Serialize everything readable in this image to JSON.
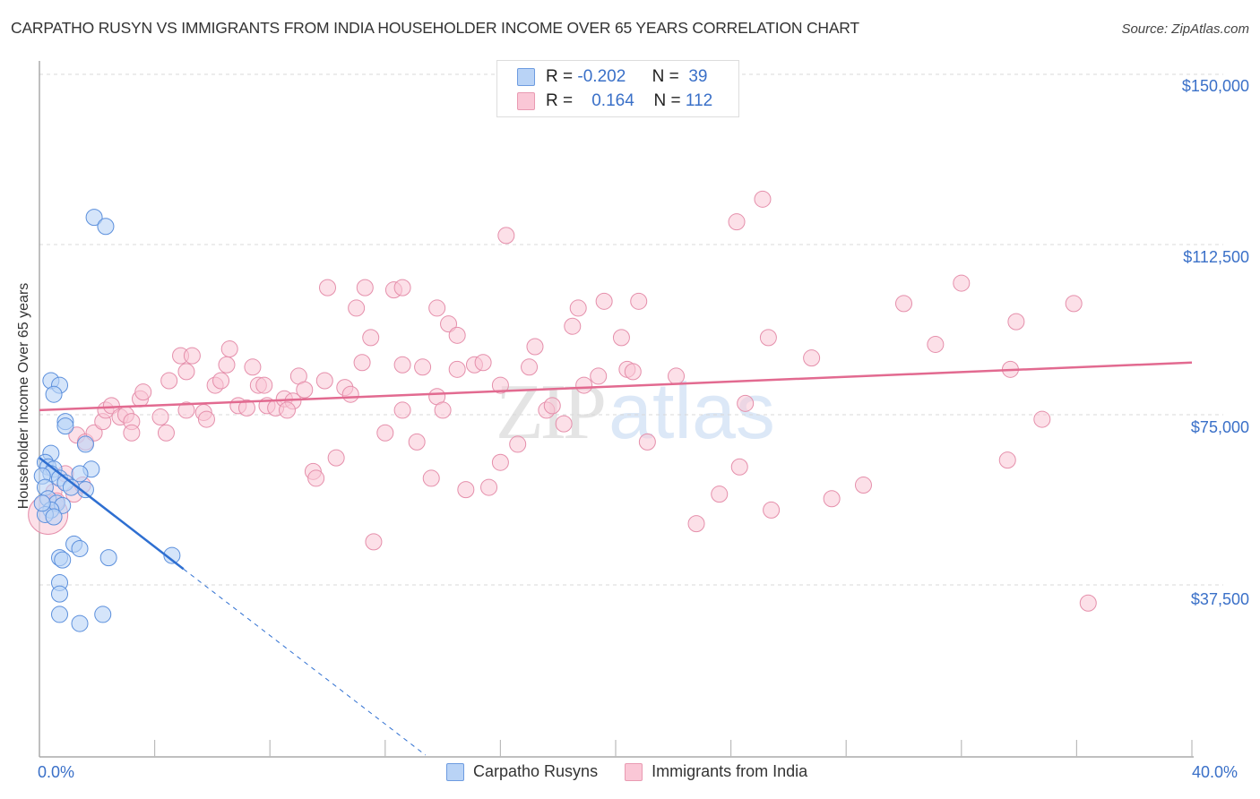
{
  "header": {
    "title": "CARPATHO RUSYN VS IMMIGRANTS FROM INDIA HOUSEHOLDER INCOME OVER 65 YEARS CORRELATION CHART",
    "source": "Source: ZipAtlas.com"
  },
  "legend": {
    "rows": [
      {
        "r_label": "R =",
        "r_value": "-0.202",
        "n_label": "N =",
        "n_value": "39",
        "color": "#b9d3f6"
      },
      {
        "r_label": "R =",
        "r_value": "0.164",
        "n_label": "N =",
        "n_value": "112",
        "color": "#fac7d6"
      }
    ],
    "bottom": [
      "Carpatho Rusyns",
      "Immigrants from India"
    ]
  },
  "axes": {
    "y_label": "Householder Income Over 65 years",
    "y_ticks": [
      "$150,000",
      "$112,500",
      "$75,000",
      "$37,500"
    ],
    "x_ticks": [
      "0.0%",
      "40.0%"
    ]
  },
  "watermark": {
    "zip": "ZIP",
    "atlas": "atlas"
  },
  "colors": {
    "blue_fill": "#b9d3f6",
    "blue_stroke": "#5b8fdc",
    "blue_line": "#2e6fd1",
    "pink_fill": "#fac7d6",
    "pink_stroke": "#e58fab",
    "pink_line": "#e26a90",
    "tick_label": "#3a70c8"
  },
  "chart_data": {
    "type": "scatter",
    "title": "CARPATHO RUSYN VS IMMIGRANTS FROM INDIA HOUSEHOLDER INCOME OVER 65 YEARS CORRELATION CHART",
    "xlabel": "",
    "ylabel": "Householder Income Over 65 years",
    "xlim": [
      0,
      40
    ],
    "ylim": [
      0,
      155000
    ],
    "x_unit": "%",
    "grid": true,
    "legend_position": "top-center",
    "series": [
      {
        "name": "Carpatho Rusyns",
        "r": -0.202,
        "n": 39,
        "trend": {
          "x": [
            0,
            5.0
          ],
          "y": [
            65500,
            41000
          ],
          "dashed_extension_to": [
            13.4,
            0
          ]
        },
        "points": [
          [
            1.9,
            118500
          ],
          [
            2.3,
            116500
          ],
          [
            0.4,
            82500
          ],
          [
            0.7,
            81500
          ],
          [
            0.5,
            79500
          ],
          [
            0.9,
            73500
          ],
          [
            0.9,
            72500
          ],
          [
            1.6,
            68500
          ],
          [
            0.4,
            66500
          ],
          [
            0.2,
            64500
          ],
          [
            0.3,
            63500
          ],
          [
            0.5,
            63000
          ],
          [
            1.8,
            63000
          ],
          [
            0.4,
            62000
          ],
          [
            0.1,
            61500
          ],
          [
            1.4,
            62000
          ],
          [
            0.7,
            61000
          ],
          [
            0.2,
            59000
          ],
          [
            1.6,
            58500
          ],
          [
            0.3,
            56500
          ],
          [
            0.6,
            55500
          ],
          [
            0.8,
            55000
          ],
          [
            0.4,
            54000
          ],
          [
            0.2,
            53000
          ],
          [
            0.1,
            55500
          ],
          [
            0.9,
            60000
          ],
          [
            1.1,
            59000
          ],
          [
            1.2,
            46500
          ],
          [
            1.4,
            45500
          ],
          [
            0.7,
            43500
          ],
          [
            0.8,
            43000
          ],
          [
            2.4,
            43500
          ],
          [
            4.6,
            44000
          ],
          [
            0.7,
            38000
          ],
          [
            0.7,
            35500
          ],
          [
            0.7,
            31000
          ],
          [
            2.2,
            31000
          ],
          [
            1.4,
            29000
          ],
          [
            0.5,
            52500
          ]
        ]
      },
      {
        "name": "Immigrants from India",
        "r": 0.164,
        "n": 112,
        "trend": {
          "x": [
            0,
            40
          ],
          "y": [
            76000,
            86500
          ]
        },
        "points": [
          [
            0.3,
            53000
          ],
          [
            0.5,
            58000
          ],
          [
            0.9,
            62000
          ],
          [
            1.2,
            57500
          ],
          [
            1.5,
            59500
          ],
          [
            0.6,
            56000
          ],
          [
            1.3,
            70500
          ],
          [
            1.6,
            69000
          ],
          [
            1.9,
            71000
          ],
          [
            2.2,
            73500
          ],
          [
            2.3,
            76000
          ],
          [
            2.5,
            77000
          ],
          [
            2.8,
            74500
          ],
          [
            3.0,
            75000
          ],
          [
            3.2,
            73500
          ],
          [
            3.5,
            78500
          ],
          [
            3.6,
            80000
          ],
          [
            3.2,
            71000
          ],
          [
            4.2,
            74500
          ],
          [
            4.5,
            82500
          ],
          [
            4.4,
            71000
          ],
          [
            4.9,
            88000
          ],
          [
            5.1,
            84500
          ],
          [
            5.3,
            88000
          ],
          [
            5.1,
            76000
          ],
          [
            5.7,
            75500
          ],
          [
            5.8,
            74000
          ],
          [
            6.1,
            81500
          ],
          [
            6.3,
            82500
          ],
          [
            6.5,
            86000
          ],
          [
            6.6,
            89500
          ],
          [
            6.9,
            77000
          ],
          [
            7.2,
            76500
          ],
          [
            7.4,
            85500
          ],
          [
            7.6,
            81500
          ],
          [
            7.8,
            81500
          ],
          [
            7.9,
            77000
          ],
          [
            8.2,
            76500
          ],
          [
            8.5,
            78500
          ],
          [
            8.8,
            78000
          ],
          [
            8.6,
            76000
          ],
          [
            9.0,
            83500
          ],
          [
            9.2,
            80500
          ],
          [
            9.5,
            62500
          ],
          [
            9.6,
            61000
          ],
          [
            9.9,
            82500
          ],
          [
            10.0,
            103000
          ],
          [
            10.3,
            65500
          ],
          [
            10.6,
            81000
          ],
          [
            10.8,
            79500
          ],
          [
            11.0,
            98500
          ],
          [
            11.2,
            86500
          ],
          [
            11.3,
            103000
          ],
          [
            11.5,
            92000
          ],
          [
            11.6,
            47000
          ],
          [
            12.0,
            71000
          ],
          [
            12.3,
            102500
          ],
          [
            12.6,
            86000
          ],
          [
            12.6,
            103000
          ],
          [
            12.6,
            76000
          ],
          [
            13.1,
            69000
          ],
          [
            13.3,
            85500
          ],
          [
            13.6,
            61000
          ],
          [
            13.8,
            98500
          ],
          [
            13.8,
            79000
          ],
          [
            14.0,
            76000
          ],
          [
            14.2,
            95000
          ],
          [
            14.5,
            85000
          ],
          [
            14.5,
            92500
          ],
          [
            14.8,
            58500
          ],
          [
            15.1,
            86000
          ],
          [
            15.4,
            86500
          ],
          [
            15.6,
            59000
          ],
          [
            16.0,
            64500
          ],
          [
            16.0,
            81500
          ],
          [
            16.2,
            114500
          ],
          [
            16.6,
            68500
          ],
          [
            17.0,
            85500
          ],
          [
            17.2,
            90000
          ],
          [
            17.6,
            76000
          ],
          [
            17.8,
            77000
          ],
          [
            18.2,
            73000
          ],
          [
            18.5,
            94500
          ],
          [
            18.7,
            98500
          ],
          [
            18.9,
            81500
          ],
          [
            19.4,
            83500
          ],
          [
            19.6,
            100000
          ],
          [
            20.2,
            92000
          ],
          [
            20.4,
            85000
          ],
          [
            20.6,
            84500
          ],
          [
            20.8,
            100000
          ],
          [
            21.1,
            69000
          ],
          [
            22.1,
            83500
          ],
          [
            22.8,
            51000
          ],
          [
            23.6,
            57500
          ],
          [
            24.2,
            117500
          ],
          [
            24.3,
            63500
          ],
          [
            24.5,
            77500
          ],
          [
            25.1,
            122500
          ],
          [
            25.3,
            92000
          ],
          [
            25.4,
            54000
          ],
          [
            26.8,
            87500
          ],
          [
            27.5,
            56500
          ],
          [
            28.6,
            59500
          ],
          [
            30.0,
            99500
          ],
          [
            31.1,
            90500
          ],
          [
            32.0,
            104000
          ],
          [
            33.6,
            65000
          ],
          [
            33.7,
            85000
          ],
          [
            33.9,
            95500
          ],
          [
            34.8,
            74000
          ],
          [
            35.9,
            99500
          ],
          [
            36.4,
            33500
          ]
        ]
      }
    ]
  }
}
